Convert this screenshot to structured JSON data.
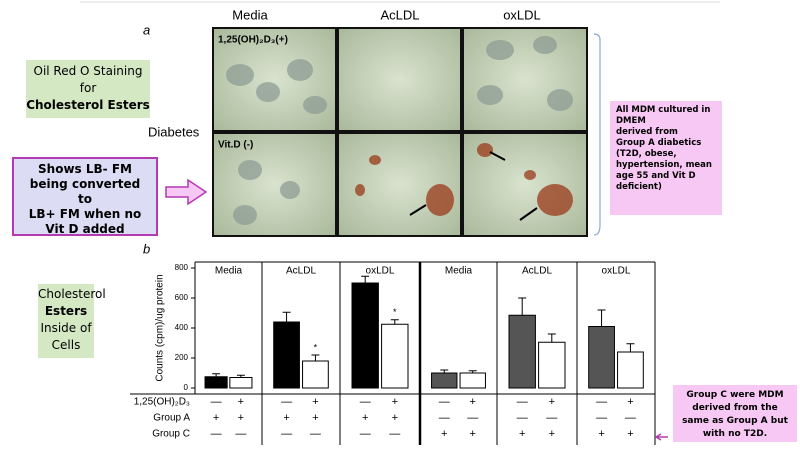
{
  "header": {
    "panel_letter_a": "a",
    "panel_letter_b": "b"
  },
  "images": {
    "columns": [
      "Media",
      "AcLDL",
      "oxLDL"
    ],
    "row_labels": [
      "1,25(OH)₂D₃(+)",
      "Vit.D (-)"
    ],
    "group_label": "Diabetes"
  },
  "callouts": {
    "staining": [
      "Oil Red O Staining",
      "for",
      "Cholesterol Esters"
    ],
    "conversion": [
      "Shows LB- FM",
      "being converted",
      "to",
      "LB+ FM when no",
      "Vit D added"
    ],
    "cohort": [
      "All MDM cultured in DMEM",
      "derived from",
      "Group A diabetics (T2D, obese, hypertension, mean age 55 and Vit D deficient)"
    ],
    "esters": [
      "Cholesterol",
      "Esters",
      "Inside of",
      "Cells"
    ],
    "group_c": "Group C were MDM derived from the same as Group A but with no T2D."
  },
  "chart_data": {
    "type": "bar",
    "ylabel": "Counts (cpm)/ug protein",
    "categories": [
      "Media",
      "AcLDL",
      "oxLDL",
      "Media",
      "AcLDL",
      "oxLDL"
    ],
    "series": [
      {
        "colors": [
          "#000000",
          "#000000",
          "#000000",
          "#555555",
          "#555555",
          "#555555"
        ],
        "values": [
          75,
          440,
          700,
          100,
          485,
          410
        ],
        "errors": [
          20,
          65,
          45,
          20,
          115,
          110
        ]
      },
      {
        "colors": [
          "#ffffff",
          "#ffffff",
          "#ffffff",
          "#ffffff",
          "#ffffff",
          "#ffffff"
        ],
        "values": [
          70,
          180,
          425,
          100,
          305,
          240
        ],
        "errors": [
          15,
          40,
          30,
          15,
          55,
          55
        ],
        "markers": [
          null,
          "*",
          "*",
          null,
          null,
          null
        ]
      }
    ],
    "ylim": [
      0,
      800
    ],
    "yticks": [
      0,
      200,
      400,
      600,
      800
    ],
    "table": [
      {
        "label": "1,25(OH)₂D₃",
        "signs": [
          "—",
          "+",
          "—",
          "+",
          "—",
          "+",
          "—",
          "+",
          "—",
          "+",
          "—",
          "+"
        ]
      },
      {
        "label": "Group A",
        "signs": [
          "+",
          "+",
          "+",
          "+",
          "+",
          "+",
          "—",
          "—",
          "—",
          "—",
          "—",
          "—"
        ]
      },
      {
        "label": "Group C",
        "signs": [
          "—",
          "—",
          "—",
          "—",
          "—",
          "—",
          "+",
          "+",
          "+",
          "+",
          "+",
          "+"
        ]
      }
    ]
  }
}
